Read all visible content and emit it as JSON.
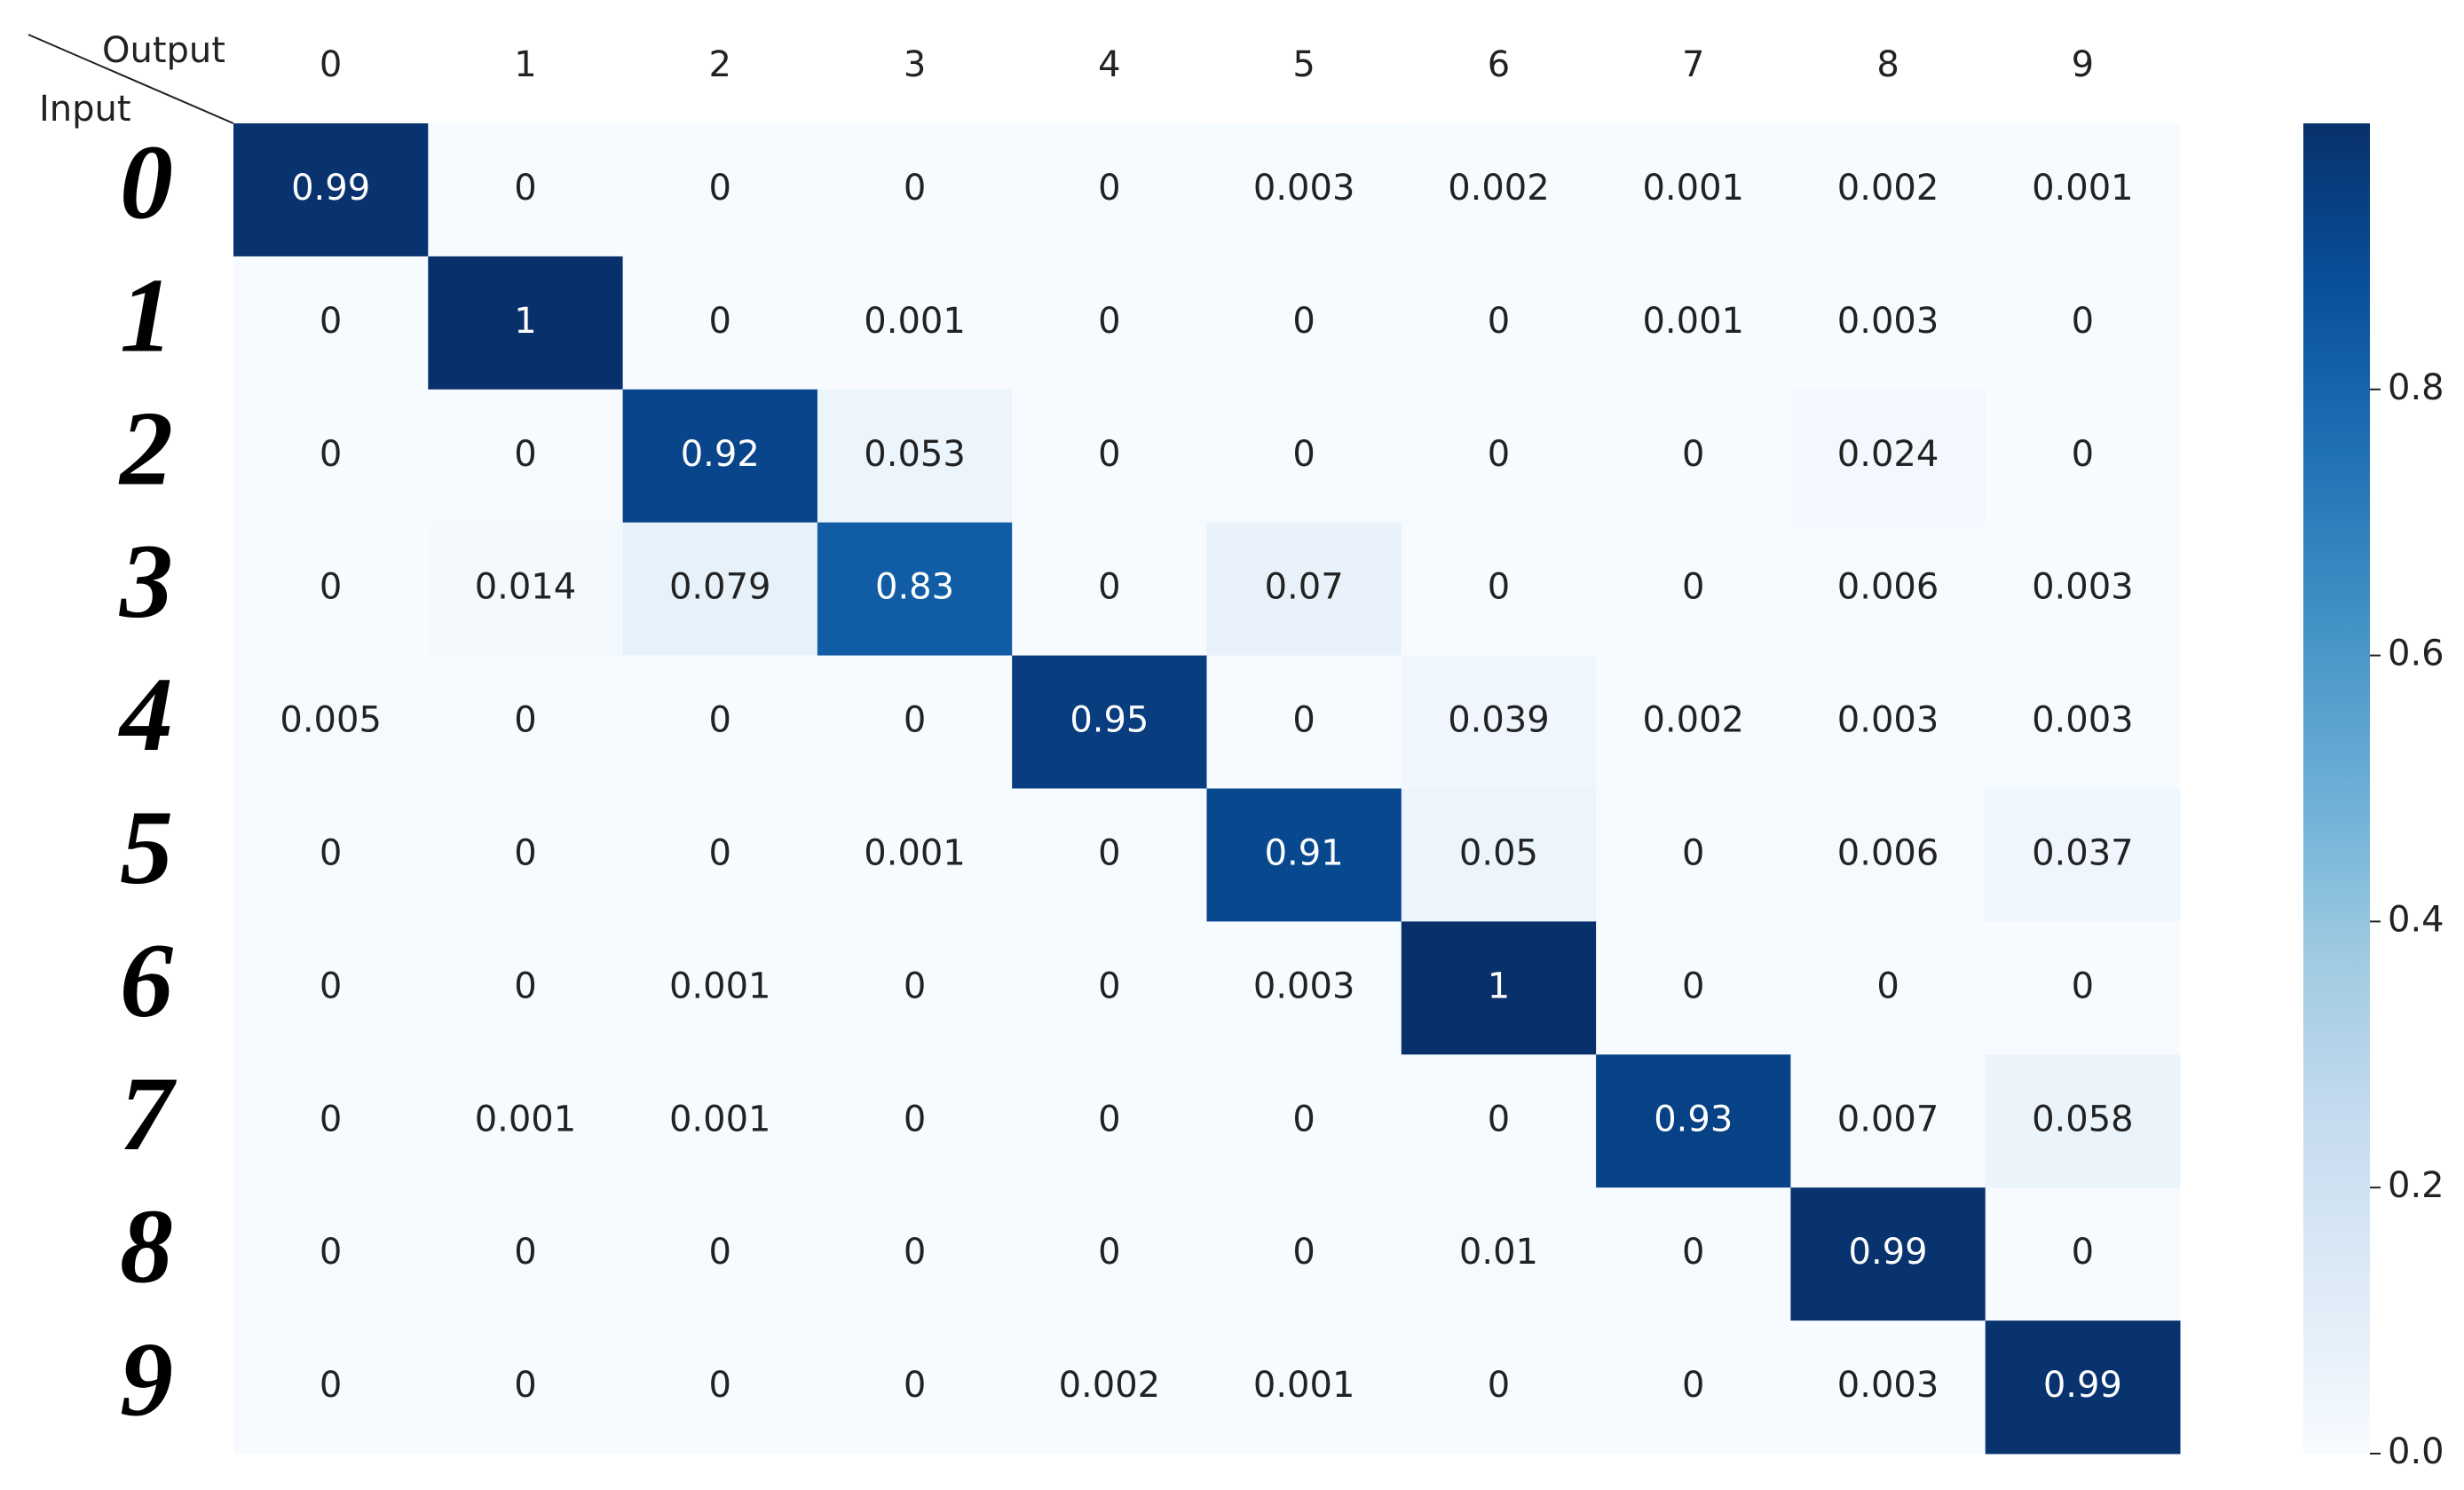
{
  "chart_data": {
    "type": "heatmap",
    "x_label": "Output",
    "y_label": "Input",
    "x_categories": [
      "0",
      "1",
      "2",
      "3",
      "4",
      "5",
      "6",
      "7",
      "8",
      "9"
    ],
    "y_categories": [
      "0",
      "1",
      "2",
      "3",
      "4",
      "5",
      "6",
      "7",
      "8",
      "9"
    ],
    "values": [
      [
        0.99,
        0,
        0,
        0,
        0,
        0.003,
        0.002,
        0.001,
        0.002,
        0.001
      ],
      [
        0,
        1,
        0,
        0.001,
        0,
        0,
        0,
        0.001,
        0.003,
        0
      ],
      [
        0,
        0,
        0.92,
        0.053,
        0,
        0,
        0,
        0,
        0.024,
        0
      ],
      [
        0,
        0.014,
        0.079,
        0.83,
        0,
        0.07,
        0,
        0,
        0.006,
        0.003
      ],
      [
        0.005,
        0,
        0,
        0,
        0.95,
        0,
        0.039,
        0.002,
        0.003,
        0.003
      ],
      [
        0,
        0,
        0,
        0.001,
        0,
        0.91,
        0.05,
        0,
        0.006,
        0.037
      ],
      [
        0,
        0,
        0.001,
        0,
        0,
        0.003,
        1,
        0,
        0,
        0
      ],
      [
        0,
        0.001,
        0.001,
        0,
        0,
        0,
        0,
        0.93,
        0.007,
        0.058
      ],
      [
        0,
        0,
        0,
        0,
        0,
        0,
        0.01,
        0,
        0.99,
        0
      ],
      [
        0,
        0,
        0,
        0,
        0.002,
        0.001,
        0,
        0,
        0.003,
        0.99
      ]
    ],
    "zlim": [
      0,
      1
    ],
    "zticks": [
      {
        "value": 0,
        "label": "0.0"
      },
      {
        "value": 0.2,
        "label": "0.2"
      },
      {
        "value": 0.4,
        "label": "0.4"
      },
      {
        "value": 0.6,
        "label": "0.6"
      },
      {
        "value": 0.8,
        "label": "0.8"
      }
    ],
    "colormap": [
      "#f7fbff",
      "#deebf7",
      "#c6dbef",
      "#9ecae1",
      "#6baed6",
      "#4292c6",
      "#2171b5",
      "#08519c",
      "#08306b"
    ]
  }
}
